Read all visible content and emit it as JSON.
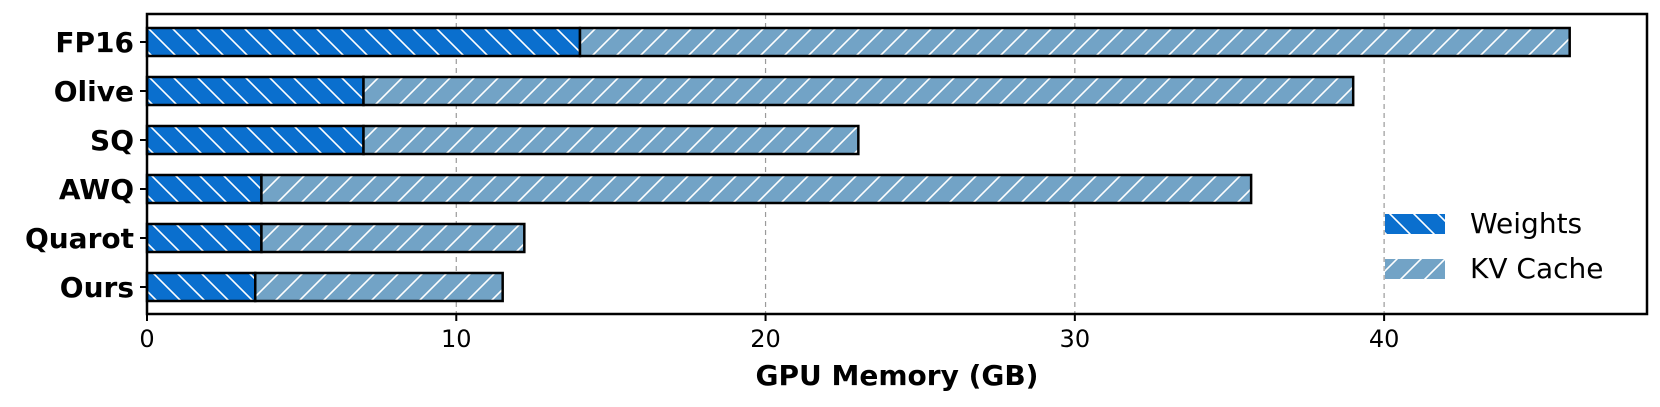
{
  "chart_data": {
    "type": "bar",
    "orientation": "horizontal",
    "stacked": true,
    "categories": [
      "FP16",
      "Olive",
      "SQ",
      "AWQ",
      "Quarot",
      "Ours"
    ],
    "series": [
      {
        "name": "Weights",
        "values": [
          14.0,
          7.0,
          7.0,
          3.7,
          3.7,
          3.5
        ],
        "color": "#0a6fce",
        "hatch": "backslash"
      },
      {
        "name": "KV Cache",
        "values": [
          32.0,
          32.0,
          16.0,
          32.0,
          8.5,
          8.0
        ],
        "color": "#72a3c6",
        "hatch": "slash"
      }
    ],
    "xlabel": "GPU Memory (GB)",
    "ylabel": "",
    "xlim": [
      0,
      48.5
    ],
    "xticks": [
      0,
      10,
      20,
      30,
      40
    ],
    "grid": "x-dashed",
    "legend_position": "right"
  }
}
